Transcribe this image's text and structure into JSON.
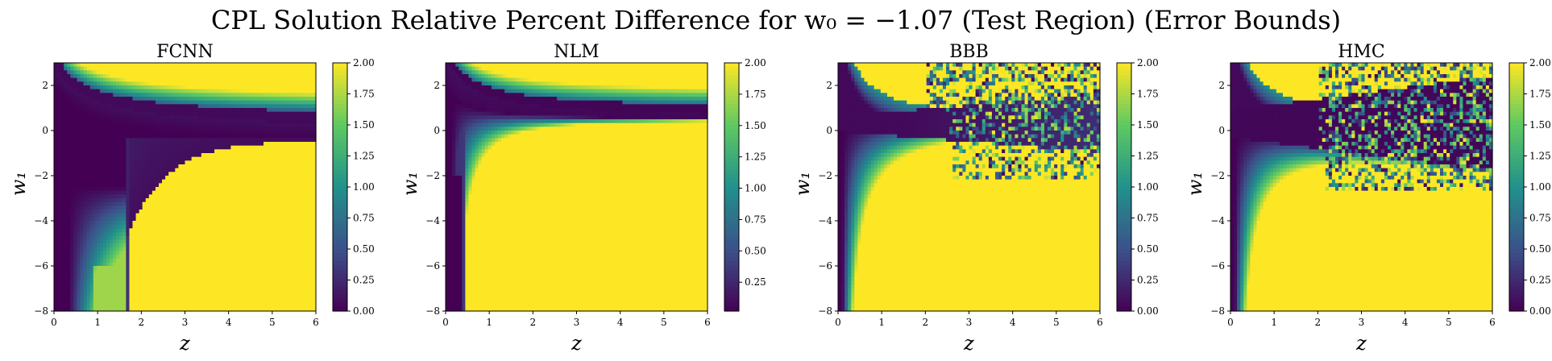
{
  "figure": {
    "title": "CPL Solution Relative Percent Difference for w₀ = −1.07 (Test Region) (Error Bounds)"
  },
  "colormap": {
    "name": "viridis",
    "stops": [
      "#440154",
      "#3b528b",
      "#21918c",
      "#5ec962",
      "#fde725"
    ]
  },
  "chart_data": [
    {
      "type": "heatmap",
      "title": "FCNN",
      "xlabel": "z",
      "ylabel": "w₁",
      "xlim": [
        0,
        6
      ],
      "ylim": [
        -8,
        3
      ],
      "xticks": [
        "0",
        "1",
        "2",
        "3",
        "4",
        "5",
        "6"
      ],
      "yticks": [
        "2",
        "0",
        "−2",
        "−4",
        "−6",
        "−8"
      ],
      "colorbar": {
        "range": [
          0,
          2
        ],
        "ticks": [
          "2.00",
          "1.75",
          "1.50",
          "1.25",
          "1.00",
          "0.75",
          "0.50",
          "0.25",
          "0.00"
        ]
      },
      "pattern": "fcnn"
    },
    {
      "type": "heatmap",
      "title": "NLM",
      "xlabel": "z",
      "ylabel": "w₁",
      "xlim": [
        0,
        6
      ],
      "ylim": [
        -8,
        3
      ],
      "xticks": [
        "0",
        "1",
        "2",
        "3",
        "4",
        "5",
        "6"
      ],
      "yticks": [
        "2",
        "0",
        "−2",
        "−4",
        "−6",
        "−8"
      ],
      "colorbar": {
        "range": [
          0.02,
          2
        ],
        "ticks": [
          "2.00",
          "1.75",
          "1.50",
          "1.25",
          "1.00",
          "0.75",
          "0.50",
          "0.25"
        ]
      },
      "pattern": "nlm"
    },
    {
      "type": "heatmap",
      "title": "BBB",
      "xlabel": "z",
      "ylabel": "w₁",
      "xlim": [
        0,
        6
      ],
      "ylim": [
        -8,
        3
      ],
      "xticks": [
        "0",
        "1",
        "2",
        "3",
        "4",
        "5",
        "6"
      ],
      "yticks": [
        "2",
        "0",
        "−2",
        "−4",
        "−6",
        "−8"
      ],
      "colorbar": {
        "range": [
          0,
          2
        ],
        "ticks": [
          "2.00",
          "1.75",
          "1.50",
          "1.25",
          "1.00",
          "0.75",
          "0.50",
          "0.25",
          "0.00"
        ]
      },
      "pattern": "bbb"
    },
    {
      "type": "heatmap",
      "title": "HMC",
      "xlabel": "z",
      "ylabel": "w₁",
      "xlim": [
        0,
        6
      ],
      "ylim": [
        -8,
        3
      ],
      "xticks": [
        "0",
        "1",
        "2",
        "3",
        "4",
        "5",
        "6"
      ],
      "yticks": [
        "2",
        "0",
        "−2",
        "−4",
        "−6",
        "−8"
      ],
      "colorbar": {
        "range": [
          0,
          2
        ],
        "ticks": [
          "2.00",
          "1.75",
          "1.50",
          "1.25",
          "1.00",
          "0.75",
          "0.50",
          "0.25",
          "0.00"
        ]
      },
      "pattern": "hmc"
    }
  ]
}
